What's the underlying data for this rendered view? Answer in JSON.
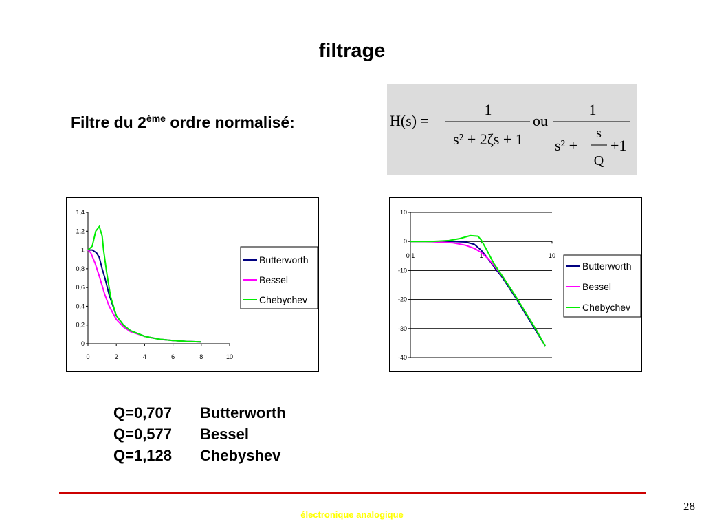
{
  "slide": {
    "title": "filtrage",
    "subtitle_pre": "Filtre du 2",
    "subtitle_sup": "éme",
    "subtitle_post": " ordre normalisé:",
    "formula": {
      "lhs": "H(s) =",
      "num1": "1",
      "den1": "s² + 2ζs + 1",
      "or": "ou",
      "num2": "1",
      "den2_pre": "s² +",
      "den2_frac_num": "s",
      "den2_frac_den": "Q",
      "den2_post": "+1"
    },
    "q_values": [
      {
        "q": "Q=0,707",
        "name": "Butterworth"
      },
      {
        "q": "Q=0,577",
        "name": "Bessel"
      },
      {
        "q": "Q=1,128",
        "name": "Chebyshev"
      }
    ],
    "footer": "électronique analogique",
    "page_number": "28"
  },
  "chart_data": [
    {
      "type": "line",
      "xlim": [
        0,
        10
      ],
      "ylim": [
        0,
        1.4
      ],
      "x_ticks": [
        "0",
        "2",
        "4",
        "6",
        "8",
        "10"
      ],
      "y_ticks": [
        "0",
        "0,2",
        "0,4",
        "0,6",
        "0,8",
        "1",
        "1,2",
        "1,4"
      ],
      "grid": false,
      "legend": "right",
      "series": [
        {
          "name": "Butterworth",
          "color": "#000080",
          "x": [
            0,
            0.3,
            0.6,
            0.8,
            1.0,
            1.2,
            1.5,
            2.0,
            2.5,
            3.0,
            4.0,
            5.0,
            6.0,
            7.0,
            8.0
          ],
          "y": [
            1.0,
            1.0,
            0.97,
            0.92,
            0.8,
            0.7,
            0.52,
            0.3,
            0.2,
            0.14,
            0.08,
            0.05,
            0.035,
            0.025,
            0.02
          ]
        },
        {
          "name": "Bessel",
          "color": "#ff00ff",
          "x": [
            0,
            0.2,
            0.5,
            0.8,
            1.0,
            1.2,
            1.5,
            2.0,
            2.5,
            3.0,
            4.0,
            5.0,
            6.0,
            7.0,
            8.0
          ],
          "y": [
            1.0,
            0.97,
            0.86,
            0.72,
            0.62,
            0.52,
            0.4,
            0.26,
            0.18,
            0.13,
            0.08,
            0.05,
            0.035,
            0.025,
            0.02
          ]
        },
        {
          "name": "Chebychev",
          "color": "#00ee00",
          "x": [
            0,
            0.3,
            0.55,
            0.8,
            1.0,
            1.1,
            1.3,
            1.6,
            2.0,
            2.5,
            3.0,
            4.0,
            5.0,
            6.0,
            7.0,
            8.0
          ],
          "y": [
            1.0,
            1.04,
            1.2,
            1.25,
            1.15,
            1.0,
            0.78,
            0.5,
            0.3,
            0.2,
            0.14,
            0.08,
            0.05,
            0.035,
            0.025,
            0.02
          ]
        }
      ]
    },
    {
      "type": "line",
      "xscale": "log",
      "xlim": [
        0.1,
        10
      ],
      "ylim": [
        -40,
        10
      ],
      "x_ticks": [
        "0.1",
        "1",
        "10"
      ],
      "y_ticks": [
        "-40",
        "-30",
        "-20",
        "-10",
        "0",
        "10"
      ],
      "grid": true,
      "legend": "right",
      "series": [
        {
          "name": "Butterworth",
          "color": "#000080",
          "x": [
            0.1,
            0.2,
            0.4,
            0.6,
            0.8,
            1.0,
            1.3,
            1.6,
            2.0,
            3.0,
            4.0,
            6.0,
            8.0
          ],
          "y": [
            0,
            0,
            0,
            -0.2,
            -1,
            -3,
            -6.5,
            -9.5,
            -12.5,
            -19,
            -24,
            -31,
            -36
          ]
        },
        {
          "name": "Bessel",
          "color": "#ff00ff",
          "x": [
            0.1,
            0.2,
            0.4,
            0.6,
            0.8,
            1.0,
            1.3,
            1.6,
            2.0,
            3.0,
            4.0,
            6.0,
            8.0
          ],
          "y": [
            0,
            -0.1,
            -0.5,
            -1.3,
            -2.4,
            -3.8,
            -6.3,
            -9,
            -12,
            -18.5,
            -23.5,
            -30.5,
            -36
          ]
        },
        {
          "name": "Chebychev",
          "color": "#00ee00",
          "x": [
            0.1,
            0.2,
            0.35,
            0.5,
            0.7,
            0.9,
            1.0,
            1.2,
            1.5,
            2.0,
            3.0,
            4.0,
            6.0,
            8.0
          ],
          "y": [
            0,
            0,
            0.3,
            1.0,
            2.0,
            1.8,
            0.5,
            -3,
            -7.5,
            -12,
            -18.5,
            -23.5,
            -30.5,
            -36
          ]
        }
      ]
    }
  ]
}
